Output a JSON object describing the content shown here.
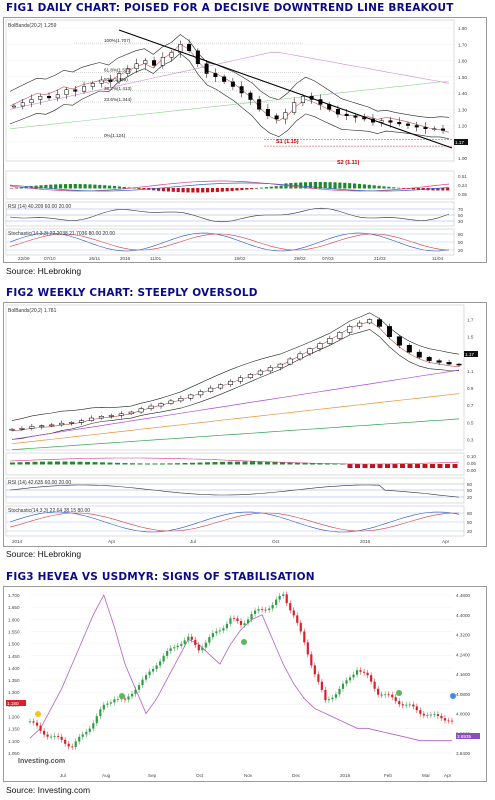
{
  "fig1": {
    "title": "FIG1 DAILY CHART: POISED FOR A DECISIVE DOWNTREND LINE BREAKOUT",
    "source": "Source: HLebroking",
    "legend": "BolBands(20,2) 1.259",
    "fib_labels": [
      "100%(1.707)",
      "61.8%(1.525)",
      "50%(1.469)",
      "38.2%(1.413)",
      "23.6%(1.344)",
      "0%(1.124)"
    ],
    "support_labels": [
      "S1 (1.15)",
      "S2 (1.11)"
    ],
    "last_price": "1.17",
    "price_ticks": [
      "1.80",
      "1.70",
      "1.60",
      "1.50",
      "1.40",
      "1.30",
      "1.20",
      "1.10",
      "1.00"
    ],
    "x_ticks": [
      "22/09",
      "07/10",
      "26/11",
      "2016",
      "11/01",
      "18/02",
      "29/02",
      "07/03",
      "21/03",
      "11/04"
    ],
    "macd_ticks": [
      "0.51",
      "0.24",
      "0.05"
    ],
    "rsi_legend": "RSI (14)  40.209  60.00  20.00",
    "rsi_ticks": [
      "70",
      "50",
      "30"
    ],
    "stoch_legend": "Stochastic(14,3,3)  22.2038  21.7036  80.00  20.00",
    "stoch_ticks": [
      "80",
      "50",
      "20"
    ],
    "chart_data": {
      "type": "line",
      "title": "FIG1 DAILY CHART: POISED FOR A DECISIVE DOWNTREND LINE BREAKOUT",
      "xlabel": "",
      "ylabel": "",
      "ylim": [
        1.0,
        1.8
      ],
      "series": [
        {
          "values": [
            1.32,
            1.34,
            1.36,
            1.38,
            1.37,
            1.39,
            1.42,
            1.41,
            1.44,
            1.46,
            1.48,
            1.47,
            1.52,
            1.55,
            1.58,
            1.6,
            1.57,
            1.62,
            1.65,
            1.7,
            1.66,
            1.58,
            1.52,
            1.5,
            1.47,
            1.44,
            1.4,
            1.36,
            1.3,
            1.26,
            1.24,
            1.28,
            1.34,
            1.38,
            1.36,
            1.33,
            1.3,
            1.27,
            1.26,
            1.25,
            1.24,
            1.22,
            1.23,
            1.22,
            1.21,
            1.2,
            1.19,
            1.18,
            1.18,
            1.17
          ]
        }
      ],
      "fibonacci": [
        1.707,
        1.525,
        1.469,
        1.413,
        1.344,
        1.124
      ],
      "support": [
        1.15,
        1.11
      ]
    }
  },
  "fig2": {
    "title": "FIG2 WEEKLY CHART: STEEPLY OVERSOLD",
    "source": "Source: HLebroking",
    "legend": "BolBands(20,2) 1.781",
    "last_price": "1.17",
    "price_ticks": [
      "1.7",
      "1.5",
      "1.3",
      "1.1",
      "0.9",
      "0.7",
      "0.5",
      "0.3"
    ],
    "x_ticks": [
      "2014",
      "Apr",
      "Jul",
      "Oct",
      "2016",
      "Apr"
    ],
    "macd_ticks": [
      "0.10",
      "0.05",
      "0.00"
    ],
    "rsi_legend": "RSI (14)  42.635  60.00  20.00",
    "rsi_ticks": [
      "80",
      "50",
      "20"
    ],
    "stoch_legend": "Stochastic(14,3,3)  22.64  38.15  80.00",
    "stoch_ticks": [
      "80",
      "50",
      "20"
    ],
    "chart_data": {
      "type": "line",
      "title": "FIG2 WEEKLY CHART: STEEPLY OVERSOLD",
      "xlabel": "",
      "ylabel": "",
      "ylim": [
        0.2,
        1.8
      ],
      "series": [
        {
          "values": [
            0.42,
            0.43,
            0.45,
            0.46,
            0.47,
            0.49,
            0.5,
            0.52,
            0.55,
            0.57,
            0.58,
            0.6,
            0.62,
            0.66,
            0.69,
            0.72,
            0.75,
            0.78,
            0.82,
            0.86,
            0.9,
            0.94,
            0.98,
            1.02,
            1.06,
            1.1,
            1.14,
            1.18,
            1.24,
            1.3,
            1.36,
            1.42,
            1.48,
            1.55,
            1.62,
            1.66,
            1.7,
            1.62,
            1.5,
            1.4,
            1.32,
            1.26,
            1.22,
            1.2,
            1.18,
            1.17
          ]
        }
      ]
    }
  },
  "fig3": {
    "title": "FIG3 HEVEA VS USDMYR: SIGNS OF STABILISATION",
    "source": "Source: Investing.com",
    "watermark": "Investing.com",
    "last_price": "1.180",
    "last_usdmyr": "3.8935",
    "left_ticks": [
      "1.700",
      "1.650",
      "1.600",
      "1.550",
      "1.500",
      "1.450",
      "1.400",
      "1.350",
      "1.300",
      "1.250",
      "1.200",
      "1.150",
      "1.100",
      "1.050"
    ],
    "right_ticks": [
      "4.4800",
      "4.4000",
      "4.3200",
      "4.2400",
      "4.1600",
      "4.0800",
      "4.0000",
      "3.9200",
      "3.8400"
    ],
    "x_ticks": [
      "Jul",
      "Aug",
      "Sep",
      "Oct",
      "Nov",
      "Dec",
      "2016",
      "Feb",
      "Mar",
      "Apr"
    ],
    "chart_data": {
      "type": "line",
      "title": "FIG3 HEVEA VS USDMYR: SIGNS OF STABILISATION",
      "xlabel": "",
      "ylabel": "",
      "series": [
        {
          "name": "",
          "values": [
            1.18,
            1.14,
            1.12,
            1.1,
            1.08,
            1.12,
            1.18,
            1.24,
            1.28,
            1.26,
            1.32,
            1.36,
            1.42,
            1.46,
            1.5,
            1.52,
            1.48,
            1.52,
            1.56,
            1.6,
            1.58,
            1.62,
            1.64,
            1.66,
            1.7,
            1.62,
            1.5,
            1.38,
            1.26,
            1.3,
            1.34,
            1.4,
            1.36,
            1.3,
            1.28,
            1.26,
            1.24,
            1.22,
            1.2,
            1.2,
            1.18
          ]
        },
        {
          "name": "",
          "values": [
            3.9,
            3.94,
            4.02,
            4.1,
            4.2,
            4.3,
            4.4,
            4.48,
            4.35,
            4.2,
            4.1,
            4.0,
            4.06,
            4.14,
            4.22,
            4.3,
            4.28,
            4.24,
            4.2,
            4.28,
            4.34,
            4.38,
            4.4,
            4.3,
            4.2,
            4.12,
            4.06,
            4.02,
            4.0,
            3.98,
            3.96,
            3.94,
            3.94,
            3.93,
            3.92,
            3.91,
            3.9,
            3.89,
            3.89,
            3.89,
            3.89
          ]
        }
      ]
    }
  }
}
